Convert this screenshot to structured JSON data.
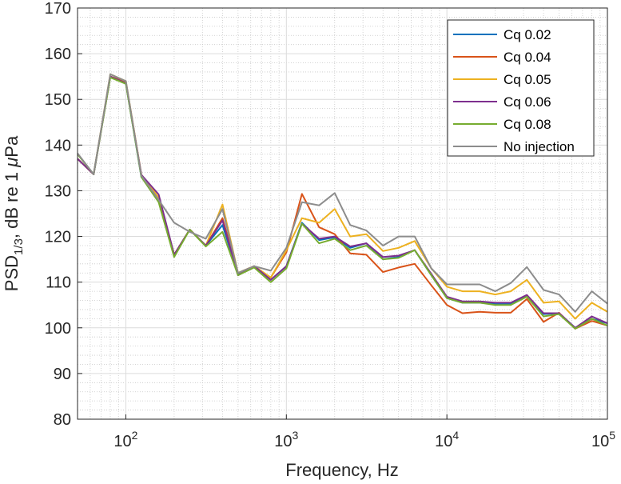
{
  "chart_data": {
    "type": "line",
    "xscale": "log",
    "xlabel": "Frequency, Hz",
    "ylabel": {
      "main": "PSD",
      "subscript": "1/3",
      "suffix_before_mu": ", dB re 1 ",
      "mu": "μ",
      "unit": "Pa"
    },
    "xlim": [
      50,
      100000
    ],
    "ylim": [
      80,
      170
    ],
    "yticks": [
      80,
      90,
      100,
      110,
      120,
      130,
      140,
      150,
      160,
      170
    ],
    "xticks": [
      {
        "value": 100,
        "base": "10",
        "exp": "2"
      },
      {
        "value": 1000,
        "base": "10",
        "exp": "3"
      },
      {
        "value": 10000,
        "base": "10",
        "exp": "4"
      },
      {
        "value": 100000,
        "base": "10",
        "exp": "5"
      }
    ],
    "grid": true,
    "minor_grid": true,
    "legend_position": "top-right",
    "x": [
      50,
      63,
      80,
      100,
      125,
      160,
      200,
      250,
      315,
      400,
      500,
      630,
      800,
      1000,
      1250,
      1600,
      2000,
      2500,
      3150,
      4000,
      5000,
      6300,
      8000,
      10000,
      12500,
      16000,
      20000,
      25000,
      31500,
      40000,
      50000,
      63000,
      80000,
      100000
    ],
    "series": [
      {
        "name": "Cq 0.02",
        "color": "#0072BD",
        "values": [
          137,
          133.6,
          155,
          153.5,
          133,
          128.5,
          116,
          121.5,
          118,
          122.5,
          111.8,
          113.5,
          110.5,
          113.5,
          123,
          119.2,
          119.8,
          117.5,
          118.5,
          115,
          115.5,
          117,
          111.5,
          106.5,
          105.5,
          105.5,
          105.2,
          105.2,
          107,
          103,
          103.2,
          100,
          102,
          101
        ]
      },
      {
        "name": "Cq 0.04",
        "color": "#D95319",
        "values": [
          137,
          133.6,
          155,
          153.8,
          133.5,
          128.5,
          116,
          121.5,
          118,
          124,
          112,
          113.5,
          111,
          116.5,
          129.3,
          122,
          120.5,
          116.3,
          116,
          112.2,
          113.2,
          114,
          109.3,
          105,
          103.2,
          103.5,
          103.3,
          103.3,
          106.3,
          101.3,
          103.3,
          99.8,
          101.5,
          100.5
        ]
      },
      {
        "name": "Cq 0.05",
        "color": "#EDB120",
        "values": [
          137,
          133.6,
          155.5,
          154,
          133.5,
          128.5,
          116,
          121.5,
          118,
          127,
          112,
          113.5,
          111,
          117,
          124,
          123,
          126,
          120,
          120.5,
          116.8,
          117.5,
          119,
          113,
          109,
          108,
          108,
          107.3,
          108,
          110.5,
          105.5,
          105.8,
          102,
          105.5,
          103.5
        ]
      },
      {
        "name": "Cq 0.06",
        "color": "#7E2F8E",
        "values": [
          137,
          133.6,
          155,
          153.5,
          133.5,
          129.2,
          116,
          121.5,
          118,
          123.5,
          111.5,
          113.5,
          110.5,
          113.5,
          122.8,
          119.5,
          120,
          117.8,
          118.5,
          115.5,
          115.8,
          117,
          111.8,
          106.8,
          105.8,
          105.8,
          105.5,
          105.5,
          107.2,
          103.2,
          103.2,
          100,
          102.5,
          101
        ]
      },
      {
        "name": "Cq 0.08",
        "color": "#77AC30",
        "values": [
          138,
          133.6,
          154.8,
          153.4,
          133,
          127.5,
          115.5,
          121.5,
          117.8,
          121,
          111.5,
          113.2,
          110,
          113,
          122.8,
          118.5,
          119.5,
          117,
          118,
          115,
          115.3,
          117,
          111.5,
          106.5,
          105.5,
          105.5,
          105,
          105,
          106.8,
          102.5,
          103,
          99.8,
          102,
          100.5
        ]
      },
      {
        "name": "No injection",
        "color": "#8C8C8C",
        "values": [
          138.2,
          133.6,
          155.5,
          154,
          133.3,
          128,
          123,
          121,
          119.5,
          126,
          112,
          113.5,
          112.5,
          117.5,
          127.5,
          126.8,
          129.5,
          122.5,
          121.3,
          118,
          120,
          120,
          113,
          109.5,
          109.5,
          109.5,
          108,
          109.8,
          113.3,
          108.3,
          107.3,
          103.5,
          108,
          105.3
        ]
      }
    ]
  }
}
